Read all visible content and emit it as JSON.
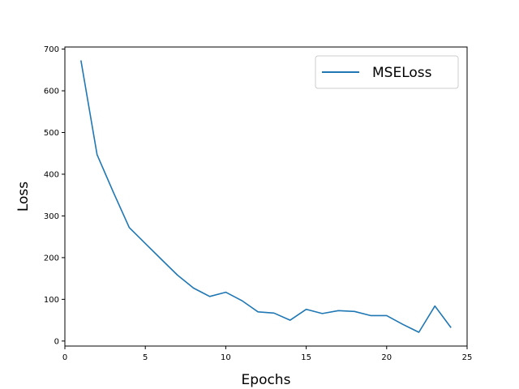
{
  "chart_data": {
    "type": "line",
    "title": "",
    "xlabel": "Epochs",
    "ylabel": "Loss",
    "xlim": [
      0,
      25
    ],
    "ylim": [
      -12,
      705
    ],
    "xticks": [
      0,
      5,
      10,
      15,
      20,
      25
    ],
    "yticks": [
      0,
      100,
      200,
      300,
      400,
      500,
      600,
      700
    ],
    "grid": false,
    "legend": "top-right",
    "series": [
      {
        "name": "MSELoss",
        "color": "#1f77b4",
        "x": [
          1,
          2,
          3,
          4,
          5,
          6,
          7,
          8,
          9,
          10,
          11,
          12,
          13,
          14,
          15,
          16,
          17,
          18,
          19,
          20,
          21,
          22,
          23,
          24
        ],
        "y": [
          673,
          447,
          358,
          272,
          234,
          196,
          158,
          127,
          107,
          117,
          97,
          70,
          67,
          50,
          76,
          66,
          73,
          71,
          61,
          61,
          40,
          21,
          84,
          32
        ]
      }
    ]
  }
}
